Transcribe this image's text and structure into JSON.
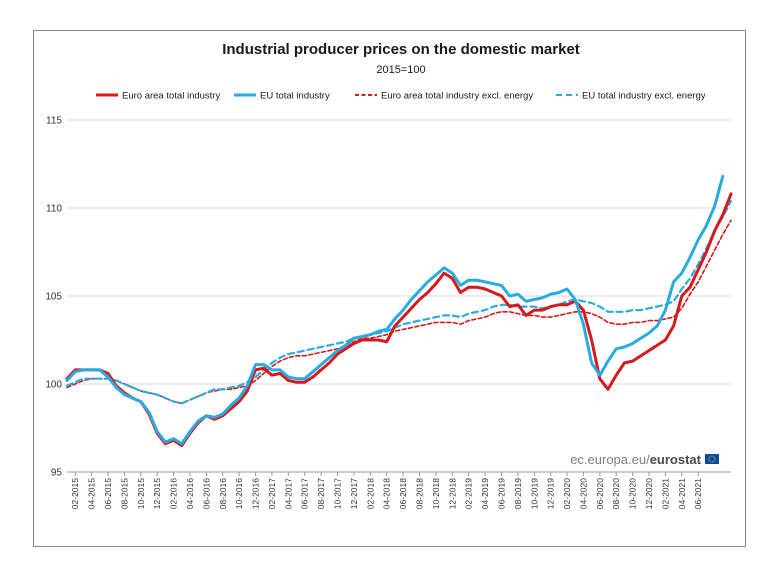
{
  "chart_data": {
    "type": "line",
    "title": "Industrial producer prices on the domestic market",
    "subtitle": "2015=100",
    "xlabel": "",
    "ylabel": "",
    "ylim": [
      95,
      115
    ],
    "yticks": [
      "95",
      "100",
      "105",
      "110",
      "115"
    ],
    "grid": "horizontal",
    "legend_position": "top",
    "x_tick_labels": [
      "02-2015",
      "04-2015",
      "06-2015",
      "08-2015",
      "10-2015",
      "12-2015",
      "02-2016",
      "04-2016",
      "06-2016",
      "08-2016",
      "10-2016",
      "12-2016",
      "02-2017",
      "04-2017",
      "06-2017",
      "08-2017",
      "10-2017",
      "12-2017",
      "02-2018",
      "04-2018",
      "06-2018",
      "08-2018",
      "10-2018",
      "12-2018",
      "02-2019",
      "04-2019",
      "06-2019",
      "08-2019",
      "10-2019",
      "12-2019",
      "02-2020",
      "04-2020",
      "06-2020",
      "08-2020",
      "10-2020",
      "12-2020",
      "02-2021",
      "04-2021",
      "06-2021"
    ],
    "x_range": [
      "01-2015",
      "06-2021"
    ],
    "series": [
      {
        "name": "Euro area total industry",
        "color": "#d7191c",
        "style": "solid",
        "values": [
          100.3,
          100.8,
          100.8,
          100.8,
          100.8,
          100.6,
          99.9,
          99.5,
          99.2,
          99.0,
          98.3,
          97.2,
          96.6,
          96.8,
          96.5,
          97.2,
          97.8,
          98.2,
          98.0,
          98.2,
          98.6,
          99.0,
          99.6,
          100.8,
          100.9,
          100.5,
          100.6,
          100.2,
          100.1,
          100.1,
          100.4,
          100.8,
          101.2,
          101.7,
          102.0,
          102.3,
          102.5,
          102.5,
          102.5,
          102.4,
          103.3,
          103.8,
          104.3,
          104.8,
          105.2,
          105.7,
          106.3,
          106.0,
          105.2,
          105.5,
          105.5,
          105.4,
          105.2,
          105.0,
          104.4,
          104.5,
          103.9,
          104.2,
          104.2,
          104.4,
          104.5,
          104.5,
          104.7,
          104.2,
          102.5,
          100.3,
          99.7,
          100.5,
          101.2,
          101.3,
          101.6,
          101.9,
          102.2,
          102.5,
          103.3,
          105.0,
          105.5,
          106.5,
          107.5,
          108.7,
          109.6,
          110.8
        ]
      },
      {
        "name": "EU total industry",
        "color": "#29abe2",
        "style": "solid",
        "values": [
          100.2,
          100.7,
          100.8,
          100.8,
          100.8,
          100.4,
          99.8,
          99.4,
          99.2,
          99.0,
          98.4,
          97.3,
          96.7,
          96.9,
          96.6,
          97.3,
          97.9,
          98.2,
          98.1,
          98.3,
          98.8,
          99.2,
          99.9,
          101.1,
          101.1,
          100.8,
          100.8,
          100.4,
          100.3,
          100.3,
          100.7,
          101.1,
          101.5,
          101.9,
          102.2,
          102.6,
          102.7,
          102.8,
          103.0,
          103.1,
          103.7,
          104.2,
          104.8,
          105.3,
          105.8,
          106.2,
          106.6,
          106.3,
          105.6,
          105.9,
          105.9,
          105.8,
          105.7,
          105.6,
          105.0,
          105.1,
          104.7,
          104.8,
          104.9,
          105.1,
          105.2,
          105.4,
          104.8,
          103.4,
          101.2,
          100.5,
          101.3,
          102.0,
          102.1,
          102.3,
          102.6,
          102.9,
          103.3,
          104.2,
          105.8,
          106.3,
          107.2,
          108.2,
          109.0,
          110.1,
          111.8
        ]
      },
      {
        "name": "Euro area total industry excl. energy",
        "color": "#d7191c",
        "style": "dashed-fine",
        "values": [
          99.8,
          100.0,
          100.2,
          100.3,
          100.3,
          100.3,
          100.2,
          100.0,
          99.8,
          99.6,
          99.5,
          99.4,
          99.2,
          99.0,
          98.9,
          99.1,
          99.3,
          99.5,
          99.6,
          99.7,
          99.7,
          99.8,
          99.9,
          100.2,
          100.6,
          101.0,
          101.3,
          101.5,
          101.6,
          101.6,
          101.7,
          101.8,
          101.9,
          102.0,
          102.2,
          102.4,
          102.6,
          102.6,
          102.7,
          102.8,
          103.0,
          103.1,
          103.2,
          103.3,
          103.4,
          103.5,
          103.5,
          103.5,
          103.4,
          103.6,
          103.7,
          103.8,
          104.0,
          104.1,
          104.1,
          104.0,
          103.9,
          103.9,
          103.8,
          103.8,
          103.9,
          104.0,
          104.1,
          104.1,
          104.0,
          103.8,
          103.5,
          103.4,
          103.4,
          103.5,
          103.5,
          103.6,
          103.6,
          103.7,
          103.8,
          104.3,
          105.1,
          105.8,
          106.7,
          107.6,
          108.5,
          109.3
        ]
      },
      {
        "name": "EU total industry excl. energy",
        "color": "#29abe2",
        "style": "dashed",
        "values": [
          99.9,
          100.1,
          100.3,
          100.3,
          100.3,
          100.3,
          100.2,
          100.0,
          99.8,
          99.6,
          99.5,
          99.4,
          99.2,
          99.0,
          98.9,
          99.1,
          99.3,
          99.5,
          99.7,
          99.7,
          99.8,
          99.9,
          100.1,
          100.4,
          100.8,
          101.2,
          101.5,
          101.7,
          101.8,
          101.9,
          102.0,
          102.1,
          102.2,
          102.3,
          102.4,
          102.6,
          102.7,
          102.8,
          102.9,
          103.0,
          103.2,
          103.4,
          103.5,
          103.6,
          103.7,
          103.8,
          103.9,
          103.9,
          103.8,
          104.0,
          104.1,
          104.2,
          104.4,
          104.5,
          104.5,
          104.4,
          104.4,
          104.4,
          104.3,
          104.4,
          104.5,
          104.7,
          104.8,
          104.7,
          104.6,
          104.4,
          104.1,
          104.1,
          104.1,
          104.2,
          104.2,
          104.3,
          104.4,
          104.5,
          104.7,
          105.4,
          106.0,
          106.8,
          107.7,
          108.7,
          109.5,
          110.4
        ]
      }
    ]
  },
  "source": {
    "light_text": "ec.europa.eu/",
    "bold_text": "eurostat",
    "logo_color": "#0e47a1"
  }
}
